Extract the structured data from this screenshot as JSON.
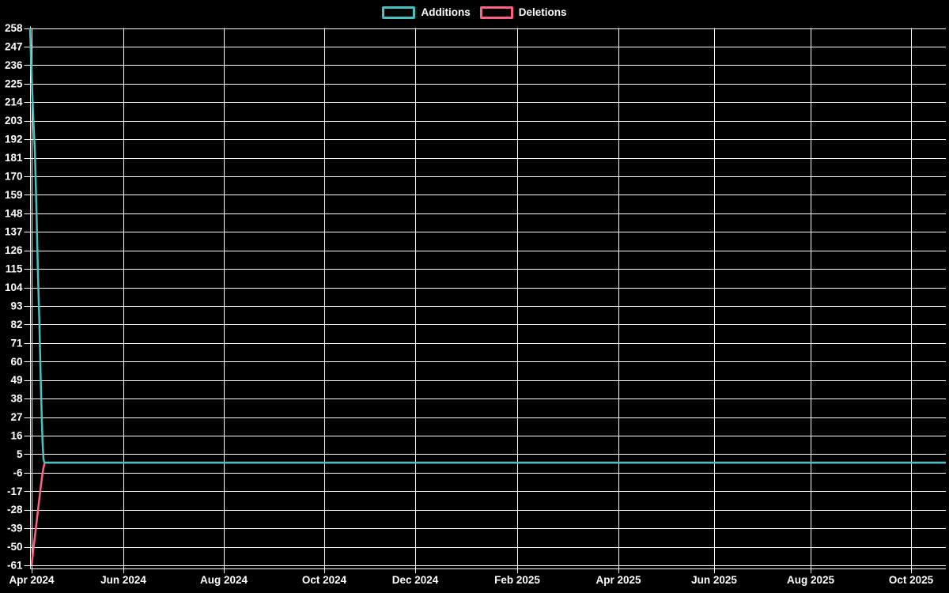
{
  "legend": {
    "items": [
      {
        "label": "Additions",
        "color": "#4bc0c0"
      },
      {
        "label": "Deletions",
        "color": "#ff6384"
      }
    ]
  },
  "chart_data": {
    "type": "line",
    "title": "",
    "xlabel": "",
    "ylabel": "",
    "background_color": "#000000",
    "grid_color": "#ffffff",
    "text_color": "#ffffff",
    "grid": true,
    "legend_position": "top",
    "x_tick_labels": [
      "Apr 2024",
      "Jun 2024",
      "Aug 2024",
      "Oct 2024",
      "Dec 2024",
      "Feb 2025",
      "Apr 2025",
      "Jun 2025",
      "Aug 2025",
      "Oct 2025"
    ],
    "y_ticks": [
      258,
      247,
      236,
      225,
      214,
      203,
      192,
      181,
      170,
      159,
      148,
      137,
      126,
      115,
      104,
      93,
      82,
      71,
      60,
      49,
      38,
      27,
      16,
      5,
      -6,
      -17,
      -28,
      -39,
      -50,
      -61
    ],
    "ylim": [
      -61,
      258
    ],
    "x_unit": "days since Apr 2024",
    "xlim": [
      0,
      570
    ],
    "series": [
      {
        "name": "Additions",
        "color": "#4bc0c0",
        "points": [
          [
            -1,
            258
          ],
          [
            0,
            230
          ],
          [
            1,
            205
          ],
          [
            2,
            185
          ],
          [
            3,
            150
          ],
          [
            4,
            110
          ],
          [
            4.8,
            85
          ],
          [
            5.5,
            55
          ],
          [
            6.2,
            30
          ],
          [
            6.8,
            12
          ],
          [
            7.4,
            2
          ],
          [
            8,
            0
          ],
          [
            570,
            0
          ]
        ]
      },
      {
        "name": "Deletions",
        "color": "#ff6384",
        "points": [
          [
            0,
            -61
          ],
          [
            1,
            -52
          ],
          [
            2,
            -44
          ],
          [
            3,
            -36
          ],
          [
            4,
            -28
          ],
          [
            5,
            -20
          ],
          [
            6,
            -12
          ],
          [
            6.7,
            -7
          ],
          [
            7.4,
            -3
          ],
          [
            8.2,
            0
          ],
          [
            570,
            0
          ]
        ]
      }
    ]
  }
}
